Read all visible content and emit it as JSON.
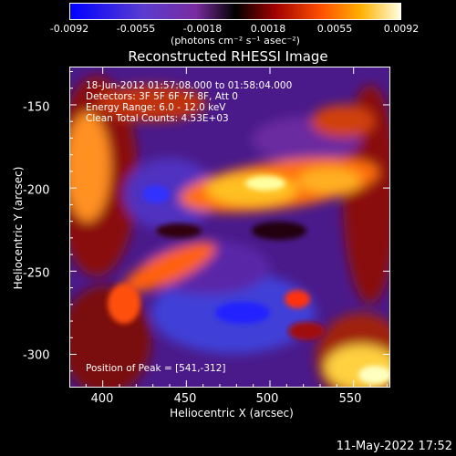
{
  "colorbar": {
    "ticks": [
      "-0.0092",
      "-0.0055",
      "-0.0018",
      "0.0018",
      "0.0055",
      "0.0092"
    ],
    "unit": "(photons cm⁻² s⁻¹ asec⁻²)"
  },
  "chart_data": {
    "type": "heatmap",
    "title": "Reconstructed RHESSI Image",
    "xlabel": "Heliocentric X (arcsec)",
    "ylabel": "Heliocentric Y (arcsec)",
    "xlim": [
      380,
      572
    ],
    "ylim": [
      -320,
      -127
    ],
    "x_ticks": [
      "400",
      "450",
      "500",
      "550"
    ],
    "y_ticks": [
      "-150",
      "-200",
      "-250",
      "-300"
    ],
    "colorbar_range": [
      -0.0092,
      0.0092
    ],
    "annotations": {
      "time_range": "18-Jun-2012 01:57:08.000 to 01:58:04.000",
      "detectors": "Detectors: 3F 5F 6F 7F 8F, Att 0",
      "energy": "Energy Range: 6.0 - 12.0 keV",
      "clean": "Clean     Total Counts: 4.53E+03",
      "peak": "Position of Peak = [541,-312]"
    }
  },
  "datestamp": "11-May-2022 17:52"
}
